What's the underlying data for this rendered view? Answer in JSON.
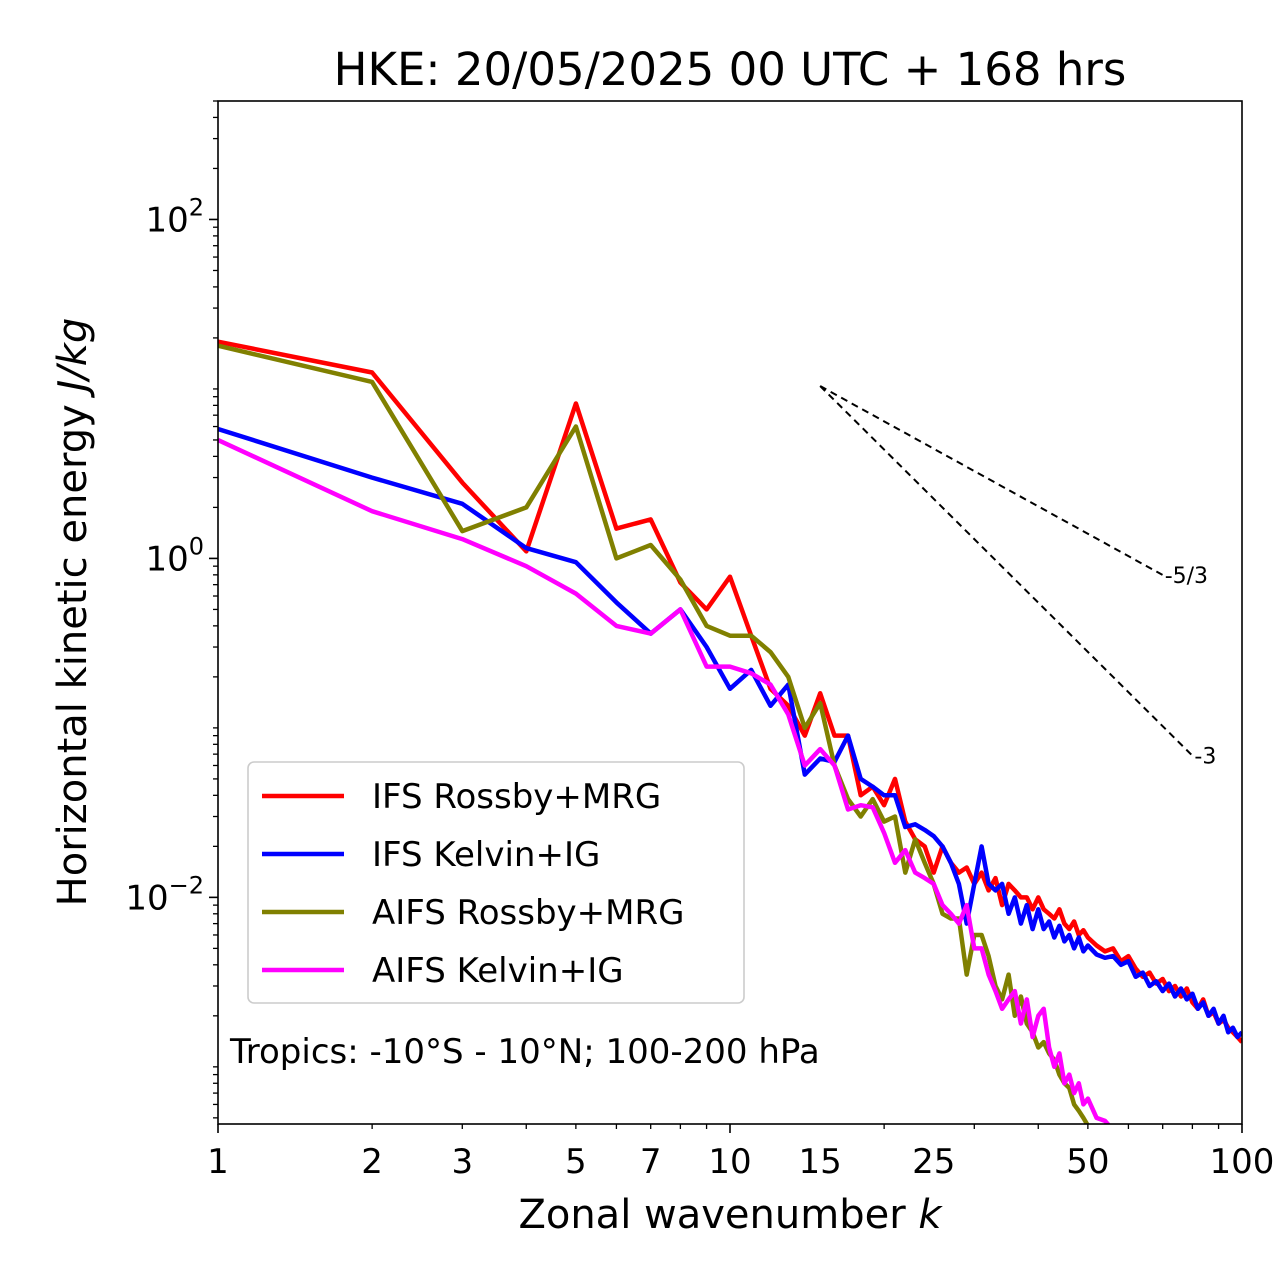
{
  "chart_data": {
    "type": "line",
    "title": "HKE: 20/05/2025 00 UTC + 168 hrs",
    "xlabel": "Zonal wavenumber",
    "xlabel_symbol": "k",
    "ylabel": "Horizontal kinetic energy",
    "ylabel_units": "J/kg",
    "xscale": "log",
    "yscale": "log",
    "xlim": [
      1,
      100
    ],
    "ylim": [
      0.00046,
      500
    ],
    "xticks": [
      1,
      2,
      3,
      5,
      7,
      10,
      15,
      25,
      50,
      100
    ],
    "xtick_labels": [
      "1",
      "2",
      "3",
      "5",
      "7",
      "10",
      "15",
      "25",
      "50",
      "100"
    ],
    "yticks": [
      0.01,
      1,
      100
    ],
    "ytick_labels": [
      {
        "base": "10",
        "exp": "−2"
      },
      {
        "base": "10",
        "exp": "0"
      },
      {
        "base": "10",
        "exp": "2"
      }
    ],
    "grid": false,
    "legend_position": "lower-left",
    "annotation": "Tropics: -10°S - 10°N; 100-200 hPa",
    "reference_slopes": [
      {
        "label": "-5/3",
        "slope": -1.6667,
        "x_start": 15,
        "x_end": 70,
        "y_start": 10.4
      },
      {
        "label": "-3",
        "slope": -3,
        "x_start": 15,
        "x_end": 80,
        "y_start": 10.4
      }
    ],
    "series": [
      {
        "name": "IFS Rossby+MRG",
        "color": "#ff0000",
        "points": [
          [
            1,
            19
          ],
          [
            2,
            12.5
          ],
          [
            3,
            2.8
          ],
          [
            4,
            1.1
          ],
          [
            5,
            8.2
          ],
          [
            6,
            1.5
          ],
          [
            7,
            1.7
          ],
          [
            8,
            0.72
          ],
          [
            9,
            0.5
          ],
          [
            10,
            0.78
          ],
          [
            11,
            0.35
          ],
          [
            12,
            0.17
          ],
          [
            13,
            0.135
          ],
          [
            14,
            0.09
          ],
          [
            15,
            0.16
          ],
          [
            16,
            0.09
          ],
          [
            17,
            0.09
          ],
          [
            18,
            0.04
          ],
          [
            19,
            0.045
          ],
          [
            20,
            0.035
          ],
          [
            21,
            0.05
          ],
          [
            22,
            0.028
          ],
          [
            23,
            0.022
          ],
          [
            24,
            0.02
          ],
          [
            25,
            0.014
          ],
          [
            26,
            0.02
          ],
          [
            27,
            0.016
          ],
          [
            28,
            0.014
          ],
          [
            29,
            0.015
          ],
          [
            30,
            0.012
          ],
          [
            31,
            0.014
          ],
          [
            32,
            0.011
          ],
          [
            33,
            0.013
          ],
          [
            34,
            0.009
          ],
          [
            35,
            0.012
          ],
          [
            36,
            0.011
          ],
          [
            37,
            0.01
          ],
          [
            38,
            0.01
          ],
          [
            39,
            0.0085
          ],
          [
            40,
            0.01
          ],
          [
            41,
            0.0085
          ],
          [
            42,
            0.008
          ],
          [
            43,
            0.0075
          ],
          [
            44,
            0.0085
          ],
          [
            45,
            0.007
          ],
          [
            46,
            0.0065
          ],
          [
            47,
            0.0072
          ],
          [
            48,
            0.006
          ],
          [
            49,
            0.0064
          ],
          [
            50,
            0.0058
          ],
          [
            52,
            0.0052
          ],
          [
            54,
            0.0048
          ],
          [
            56,
            0.005
          ],
          [
            58,
            0.0042
          ],
          [
            60,
            0.0045
          ],
          [
            62,
            0.0038
          ],
          [
            64,
            0.0034
          ],
          [
            66,
            0.0036
          ],
          [
            68,
            0.0031
          ],
          [
            70,
            0.0033
          ],
          [
            72,
            0.0028
          ],
          [
            74,
            0.003
          ],
          [
            76,
            0.0026
          ],
          [
            78,
            0.0029
          ],
          [
            80,
            0.0024
          ],
          [
            82,
            0.0022
          ],
          [
            84,
            0.0025
          ],
          [
            86,
            0.002
          ],
          [
            88,
            0.0021
          ],
          [
            90,
            0.0018
          ],
          [
            92,
            0.0019
          ],
          [
            94,
            0.0017
          ],
          [
            96,
            0.0016
          ],
          [
            98,
            0.0015
          ],
          [
            100,
            0.0014
          ]
        ]
      },
      {
        "name": "IFS Kelvin+IG",
        "color": "#0000ff",
        "points": [
          [
            1,
            5.8
          ],
          [
            2,
            3.0
          ],
          [
            3,
            2.1
          ],
          [
            4,
            1.15
          ],
          [
            5,
            0.95
          ],
          [
            6,
            0.55
          ],
          [
            7,
            0.36
          ],
          [
            8,
            0.5
          ],
          [
            9,
            0.3
          ],
          [
            10,
            0.17
          ],
          [
            11,
            0.22
          ],
          [
            12,
            0.135
          ],
          [
            13,
            0.18
          ],
          [
            14,
            0.053
          ],
          [
            15,
            0.066
          ],
          [
            16,
            0.063
          ],
          [
            17,
            0.09
          ],
          [
            18,
            0.05
          ],
          [
            19,
            0.045
          ],
          [
            20,
            0.04
          ],
          [
            21,
            0.04
          ],
          [
            22,
            0.026
          ],
          [
            23,
            0.027
          ],
          [
            24,
            0.025
          ],
          [
            25,
            0.023
          ],
          [
            26,
            0.02
          ],
          [
            27,
            0.016
          ],
          [
            28,
            0.012
          ],
          [
            29,
            0.007
          ],
          [
            30,
            0.012
          ],
          [
            31,
            0.02
          ],
          [
            32,
            0.012
          ],
          [
            33,
            0.011
          ],
          [
            34,
            0.012
          ],
          [
            35,
            0.008
          ],
          [
            36,
            0.01
          ],
          [
            37,
            0.007
          ],
          [
            38,
            0.009
          ],
          [
            39,
            0.0065
          ],
          [
            40,
            0.0085
          ],
          [
            41,
            0.0065
          ],
          [
            42,
            0.0072
          ],
          [
            43,
            0.0058
          ],
          [
            44,
            0.0068
          ],
          [
            45,
            0.0055
          ],
          [
            46,
            0.006
          ],
          [
            47,
            0.005
          ],
          [
            48,
            0.0058
          ],
          [
            49,
            0.0048
          ],
          [
            50,
            0.0052
          ],
          [
            52,
            0.0046
          ],
          [
            54,
            0.0044
          ],
          [
            56,
            0.0045
          ],
          [
            58,
            0.004
          ],
          [
            60,
            0.0042
          ],
          [
            62,
            0.0034
          ],
          [
            64,
            0.0036
          ],
          [
            66,
            0.003
          ],
          [
            68,
            0.0032
          ],
          [
            70,
            0.0028
          ],
          [
            72,
            0.0031
          ],
          [
            74,
            0.0026
          ],
          [
            76,
            0.0029
          ],
          [
            78,
            0.0025
          ],
          [
            80,
            0.0027
          ],
          [
            82,
            0.0022
          ],
          [
            84,
            0.0024
          ],
          [
            86,
            0.002
          ],
          [
            88,
            0.0022
          ],
          [
            90,
            0.0018
          ],
          [
            92,
            0.002
          ],
          [
            94,
            0.0016
          ],
          [
            96,
            0.0017
          ],
          [
            98,
            0.0015
          ],
          [
            100,
            0.0016
          ]
        ]
      },
      {
        "name": "AIFS Rossby+MRG",
        "color": "#808000",
        "points": [
          [
            1,
            18
          ],
          [
            2,
            11
          ],
          [
            3,
            1.45
          ],
          [
            4,
            2.0
          ],
          [
            5,
            6.0
          ],
          [
            6,
            1.0
          ],
          [
            7,
            1.2
          ],
          [
            8,
            0.75
          ],
          [
            9,
            0.4
          ],
          [
            10,
            0.35
          ],
          [
            11,
            0.35
          ],
          [
            12,
            0.28
          ],
          [
            13,
            0.2
          ],
          [
            14,
            0.1
          ],
          [
            15,
            0.14
          ],
          [
            16,
            0.06
          ],
          [
            17,
            0.038
          ],
          [
            18,
            0.03
          ],
          [
            19,
            0.038
          ],
          [
            20,
            0.028
          ],
          [
            21,
            0.03
          ],
          [
            22,
            0.014
          ],
          [
            23,
            0.022
          ],
          [
            24,
            0.016
          ],
          [
            25,
            0.012
          ],
          [
            26,
            0.008
          ],
          [
            27,
            0.0075
          ],
          [
            28,
            0.0075
          ],
          [
            29,
            0.0035
          ],
          [
            30,
            0.006
          ],
          [
            31,
            0.006
          ],
          [
            32,
            0.0045
          ],
          [
            33,
            0.003
          ],
          [
            34,
            0.0025
          ],
          [
            35,
            0.0035
          ],
          [
            36,
            0.002
          ],
          [
            37,
            0.0026
          ],
          [
            38,
            0.0018
          ],
          [
            39,
            0.0016
          ],
          [
            40,
            0.0013
          ],
          [
            41,
            0.0014
          ],
          [
            42,
            0.0012
          ],
          [
            43,
            0.0011
          ],
          [
            44,
            0.0009
          ],
          [
            45,
            0.0008
          ],
          [
            46,
            0.00075
          ],
          [
            47,
            0.0006
          ],
          [
            48,
            0.00055
          ],
          [
            49,
            0.0005
          ],
          [
            50,
            0.00045
          ]
        ]
      },
      {
        "name": "AIFS Kelvin+IG",
        "color": "#ff00ff",
        "points": [
          [
            1,
            5.0
          ],
          [
            2,
            1.9
          ],
          [
            3,
            1.3
          ],
          [
            4,
            0.9
          ],
          [
            5,
            0.62
          ],
          [
            6,
            0.4
          ],
          [
            7,
            0.36
          ],
          [
            8,
            0.5
          ],
          [
            9,
            0.23
          ],
          [
            10,
            0.23
          ],
          [
            11,
            0.21
          ],
          [
            12,
            0.18
          ],
          [
            13,
            0.12
          ],
          [
            14,
            0.06
          ],
          [
            15,
            0.075
          ],
          [
            16,
            0.06
          ],
          [
            17,
            0.033
          ],
          [
            18,
            0.035
          ],
          [
            19,
            0.034
          ],
          [
            20,
            0.024
          ],
          [
            21,
            0.016
          ],
          [
            22,
            0.019
          ],
          [
            23,
            0.014
          ],
          [
            24,
            0.013
          ],
          [
            25,
            0.012
          ],
          [
            26,
            0.009
          ],
          [
            27,
            0.008
          ],
          [
            28,
            0.007
          ],
          [
            29,
            0.009
          ],
          [
            30,
            0.005
          ],
          [
            31,
            0.005
          ],
          [
            32,
            0.0035
          ],
          [
            33,
            0.0028
          ],
          [
            34,
            0.0022
          ],
          [
            35,
            0.0025
          ],
          [
            36,
            0.0028
          ],
          [
            37,
            0.0018
          ],
          [
            38,
            0.0025
          ],
          [
            39,
            0.0015
          ],
          [
            40,
            0.002
          ],
          [
            41,
            0.0022
          ],
          [
            42,
            0.0013
          ],
          [
            43,
            0.001
          ],
          [
            44,
            0.0012
          ],
          [
            45,
            0.0008
          ],
          [
            46,
            0.0009
          ],
          [
            47,
            0.0007
          ],
          [
            48,
            0.0008
          ],
          [
            49,
            0.0006
          ],
          [
            50,
            0.00065
          ],
          [
            52,
            0.0005
          ],
          [
            54,
            0.00048
          ],
          [
            55,
            0.00045
          ]
        ]
      }
    ]
  }
}
